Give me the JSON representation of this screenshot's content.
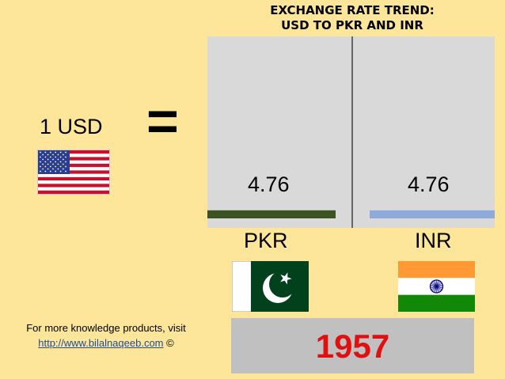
{
  "chart_data": {
    "type": "bar",
    "title": "EXCHANGE RATE TREND:\nUSD TO PKR AND INR",
    "title_line1": "EXCHANGE RATE TREND:",
    "title_line2": "USD TO PKR AND INR",
    "categories": [
      "PKR",
      "INR"
    ],
    "values": [
      4.76,
      4.76
    ],
    "value_labels": [
      "4.76",
      "4.76"
    ],
    "colors": {
      "PKR": "#3b5323",
      "INR": "#8eaadb",
      "plot_background": "#d9d9d9"
    },
    "ylim": [
      0,
      100
    ]
  },
  "left": {
    "base_label": "1 USD",
    "equals": "=",
    "flag_icon": "usa-flag-icon"
  },
  "flags": {
    "pkr": "pakistan-flag-icon",
    "inr": "india-flag-icon"
  },
  "footer": {
    "line1": "For more knowledge products, visit",
    "link": "http://www.bilalnaqeeb.com",
    "copyright": "©"
  },
  "year": "1957"
}
